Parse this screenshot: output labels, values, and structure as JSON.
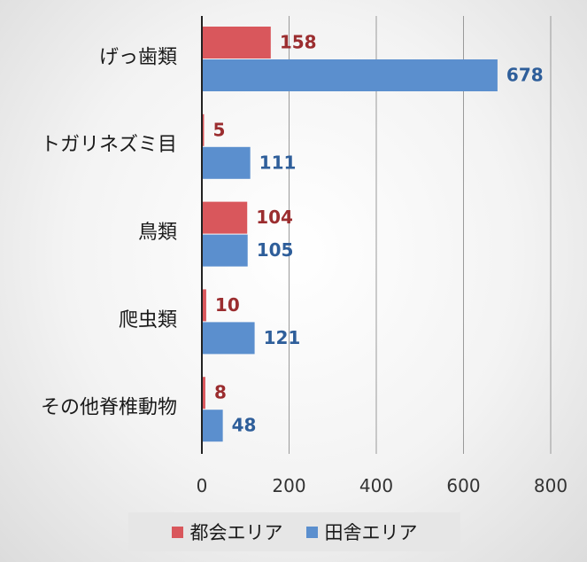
{
  "chart_data": {
    "type": "bar",
    "orientation": "horizontal",
    "categories": [
      "げっ歯類",
      "トガリネズミ目",
      "鳥類",
      "爬虫類",
      "その他脊椎動物"
    ],
    "series": [
      {
        "name": "都会エリア",
        "color": "#d9575c",
        "values": [
          158,
          5,
          104,
          10,
          8
        ]
      },
      {
        "name": "田舎エリア",
        "color": "#5b8fce",
        "values": [
          678,
          111,
          105,
          121,
          48
        ]
      }
    ],
    "xlim": [
      0,
      800
    ],
    "xticks": [
      0,
      200,
      400,
      600,
      800
    ],
    "label_colors": {
      "都会エリア": "#9b2d2f",
      "田舎エリア": "#2e5e9a"
    },
    "grid": true,
    "legend_position": "bottom"
  }
}
